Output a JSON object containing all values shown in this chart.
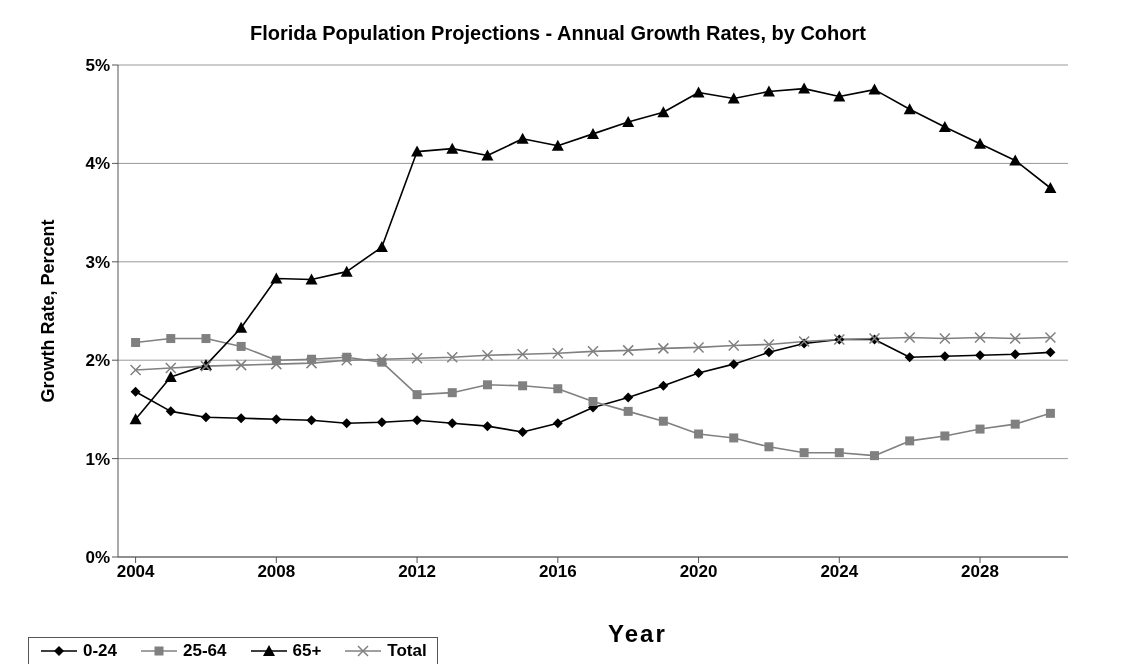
{
  "chart_data": {
    "type": "line",
    "title": "Florida Population Projections - Annual Growth Rates, by Cohort",
    "xlabel": "Year",
    "ylabel": "Growth Rate, Percent",
    "x": [
      2004,
      2005,
      2006,
      2007,
      2008,
      2009,
      2010,
      2011,
      2012,
      2013,
      2014,
      2015,
      2016,
      2017,
      2018,
      2019,
      2020,
      2021,
      2022,
      2023,
      2024,
      2025,
      2026,
      2027,
      2028,
      2029,
      2030
    ],
    "xlim": [
      2003.5,
      2030.5
    ],
    "xticks": [
      2004,
      2008,
      2012,
      2016,
      2020,
      2024,
      2028
    ],
    "ylim": [
      0,
      5
    ],
    "yticks": [
      {
        "value": 0,
        "label": "0%"
      },
      {
        "value": 1,
        "label": "1%"
      },
      {
        "value": 2,
        "label": "2%"
      },
      {
        "value": 3,
        "label": "3%"
      },
      {
        "value": 4,
        "label": "4%"
      },
      {
        "value": 5,
        "label": "5%"
      }
    ],
    "grid": "y",
    "legend": "bottom left",
    "series": [
      {
        "name": "0-24",
        "color": "#000000",
        "marker": "diamond",
        "values": [
          1.68,
          1.48,
          1.42,
          1.41,
          1.4,
          1.39,
          1.36,
          1.37,
          1.39,
          1.36,
          1.33,
          1.27,
          1.36,
          1.52,
          1.62,
          1.74,
          1.87,
          1.96,
          2.08,
          2.17,
          2.21,
          2.21,
          2.03,
          2.04,
          2.05,
          2.06,
          2.08
        ]
      },
      {
        "name": "25-64",
        "color": "#808080",
        "marker": "square",
        "values": [
          2.18,
          2.22,
          2.22,
          2.14,
          2.0,
          2.01,
          2.03,
          1.98,
          1.65,
          1.67,
          1.75,
          1.74,
          1.71,
          1.58,
          1.48,
          1.38,
          1.25,
          1.21,
          1.12,
          1.06,
          1.06,
          1.03,
          1.18,
          1.23,
          1.3,
          1.35,
          1.46
        ]
      },
      {
        "name": "65+",
        "color": "#000000",
        "marker": "triangle",
        "values": [
          1.4,
          1.83,
          1.95,
          2.33,
          2.83,
          2.82,
          2.9,
          3.15,
          4.12,
          4.15,
          4.08,
          4.25,
          4.18,
          4.3,
          4.42,
          4.52,
          4.72,
          4.66,
          4.73,
          4.76,
          4.68,
          4.75,
          4.55,
          4.37,
          4.2,
          4.03,
          3.75
        ]
      },
      {
        "name": "Total",
        "color": "#808080",
        "marker": "cross",
        "values": [
          1.9,
          1.92,
          1.94,
          1.95,
          1.96,
          1.97,
          2.0,
          2.01,
          2.02,
          2.03,
          2.05,
          2.06,
          2.07,
          2.09,
          2.1,
          2.12,
          2.13,
          2.15,
          2.16,
          2.19,
          2.21,
          2.22,
          2.23,
          2.22,
          2.23,
          2.22,
          2.23
        ]
      }
    ]
  }
}
